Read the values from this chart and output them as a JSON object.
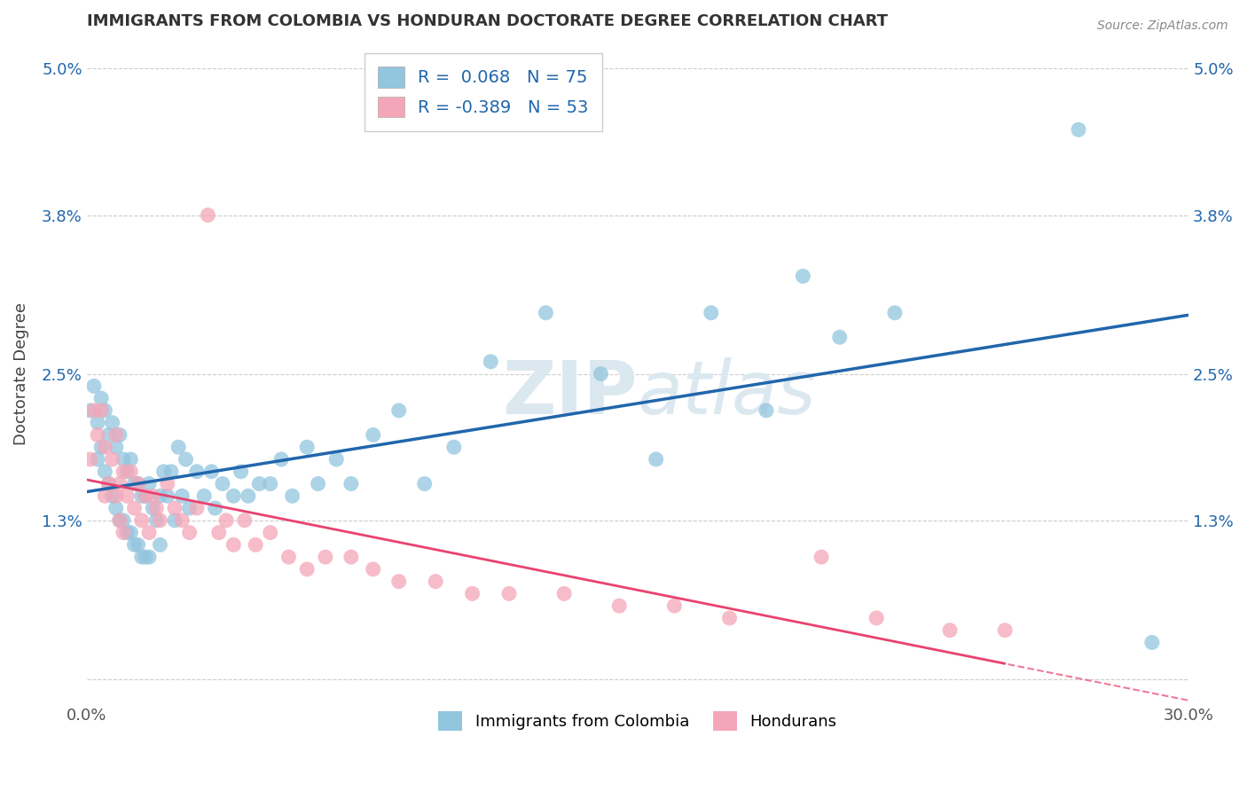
{
  "title": "IMMIGRANTS FROM COLOMBIA VS HONDURAN DOCTORATE DEGREE CORRELATION CHART",
  "source": "Source: ZipAtlas.com",
  "ylabel": "Doctorate Degree",
  "xlim": [
    0.0,
    0.3
  ],
  "ylim": [
    -0.002,
    0.052
  ],
  "yticks": [
    0.0,
    0.013,
    0.025,
    0.038,
    0.05
  ],
  "yticklabels": [
    "",
    "1.3%",
    "2.5%",
    "3.8%",
    "5.0%"
  ],
  "colombia_R": 0.068,
  "colombia_N": 75,
  "honduras_R": -0.389,
  "honduras_N": 53,
  "colombia_color": "#92c5de",
  "honduras_color": "#f4a6b8",
  "colombia_line_color": "#2166ac",
  "honduras_line_color": "#e8436e",
  "legend_label_colombia": "Immigrants from Colombia",
  "legend_label_honduras": "Hondurans",
  "background_color": "#ffffff",
  "grid_color": "#cccccc",
  "title_color": "#333333",
  "watermark_color": "#dce8f0",
  "colombia_x": [
    0.001,
    0.002,
    0.003,
    0.003,
    0.004,
    0.004,
    0.005,
    0.005,
    0.006,
    0.006,
    0.007,
    0.007,
    0.008,
    0.008,
    0.009,
    0.009,
    0.01,
    0.01,
    0.011,
    0.011,
    0.012,
    0.012,
    0.013,
    0.013,
    0.014,
    0.014,
    0.015,
    0.015,
    0.016,
    0.016,
    0.017,
    0.017,
    0.018,
    0.019,
    0.02,
    0.02,
    0.021,
    0.022,
    0.023,
    0.024,
    0.025,
    0.026,
    0.027,
    0.028,
    0.03,
    0.032,
    0.034,
    0.035,
    0.037,
    0.04,
    0.042,
    0.044,
    0.047,
    0.05,
    0.053,
    0.056,
    0.06,
    0.063,
    0.068,
    0.072,
    0.078,
    0.085,
    0.092,
    0.1,
    0.11,
    0.125,
    0.14,
    0.155,
    0.17,
    0.185,
    0.195,
    0.205,
    0.22,
    0.27,
    0.29
  ],
  "colombia_y": [
    0.022,
    0.024,
    0.021,
    0.018,
    0.023,
    0.019,
    0.022,
    0.017,
    0.02,
    0.016,
    0.021,
    0.015,
    0.019,
    0.014,
    0.02,
    0.013,
    0.018,
    0.013,
    0.017,
    0.012,
    0.018,
    0.012,
    0.016,
    0.011,
    0.016,
    0.011,
    0.015,
    0.01,
    0.015,
    0.01,
    0.016,
    0.01,
    0.014,
    0.013,
    0.015,
    0.011,
    0.017,
    0.015,
    0.017,
    0.013,
    0.019,
    0.015,
    0.018,
    0.014,
    0.017,
    0.015,
    0.017,
    0.014,
    0.016,
    0.015,
    0.017,
    0.015,
    0.016,
    0.016,
    0.018,
    0.015,
    0.019,
    0.016,
    0.018,
    0.016,
    0.02,
    0.022,
    0.016,
    0.019,
    0.026,
    0.03,
    0.025,
    0.018,
    0.03,
    0.022,
    0.033,
    0.028,
    0.03,
    0.045,
    0.003
  ],
  "honduras_x": [
    0.001,
    0.002,
    0.003,
    0.004,
    0.005,
    0.005,
    0.006,
    0.007,
    0.008,
    0.008,
    0.009,
    0.009,
    0.01,
    0.01,
    0.011,
    0.012,
    0.013,
    0.014,
    0.015,
    0.016,
    0.017,
    0.018,
    0.019,
    0.02,
    0.022,
    0.024,
    0.026,
    0.028,
    0.03,
    0.033,
    0.036,
    0.038,
    0.04,
    0.043,
    0.046,
    0.05,
    0.055,
    0.06,
    0.065,
    0.072,
    0.078,
    0.085,
    0.095,
    0.105,
    0.115,
    0.13,
    0.145,
    0.16,
    0.175,
    0.2,
    0.215,
    0.235,
    0.25
  ],
  "honduras_y": [
    0.018,
    0.022,
    0.02,
    0.022,
    0.019,
    0.015,
    0.016,
    0.018,
    0.02,
    0.015,
    0.016,
    0.013,
    0.017,
    0.012,
    0.015,
    0.017,
    0.014,
    0.016,
    0.013,
    0.015,
    0.012,
    0.015,
    0.014,
    0.013,
    0.016,
    0.014,
    0.013,
    0.012,
    0.014,
    0.038,
    0.012,
    0.013,
    0.011,
    0.013,
    0.011,
    0.012,
    0.01,
    0.009,
    0.01,
    0.01,
    0.009,
    0.008,
    0.008,
    0.007,
    0.007,
    0.007,
    0.006,
    0.006,
    0.005,
    0.01,
    0.005,
    0.004,
    0.004
  ]
}
